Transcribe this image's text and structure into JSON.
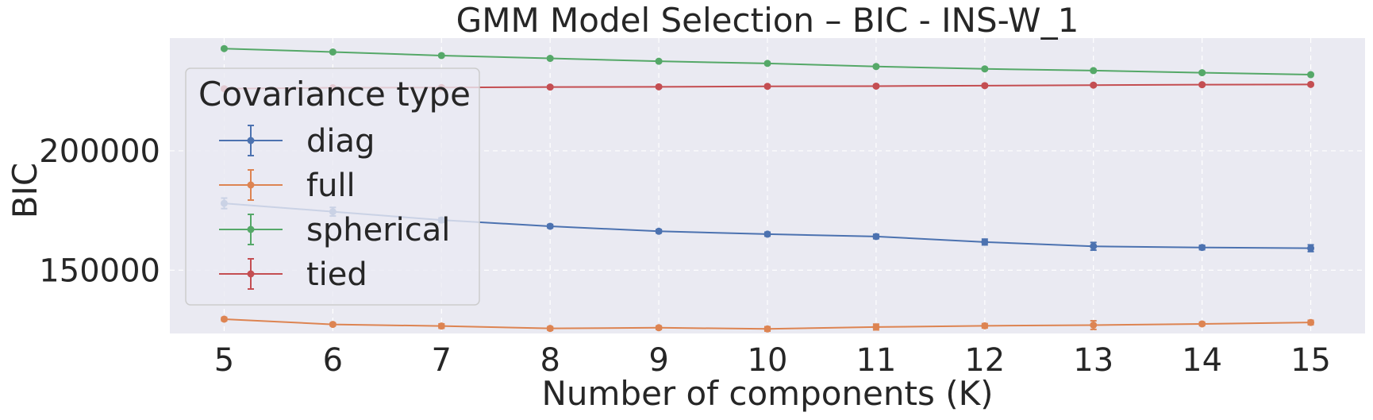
{
  "chart_data": {
    "type": "line",
    "title": "GMM Model Selection – BIC - INS-W_1",
    "xlabel": "Number of components (K)",
    "ylabel": "BIC",
    "x": [
      5,
      6,
      7,
      8,
      9,
      10,
      11,
      12,
      13,
      14,
      15
    ],
    "xlim": [
      4.5,
      15.5
    ],
    "ylim": [
      123500,
      247200
    ],
    "yticks": [
      150000,
      200000
    ],
    "ytick_labels": [
      "150000",
      "200000"
    ],
    "grid": true,
    "legend": {
      "title": "Covariance type",
      "placement": "upper-left"
    },
    "series": [
      {
        "name": "diag",
        "color": "#4c72b0",
        "values": [
          178000,
          174500,
          171000,
          168400,
          166300,
          165100,
          164100,
          161800,
          160000,
          159500,
          159200
        ],
        "errors": [
          2200,
          1800,
          900,
          700,
          700,
          800,
          900,
          1200,
          1600,
          900,
          1400
        ]
      },
      {
        "name": "full",
        "color": "#dd8452",
        "values": [
          129500,
          127300,
          126600,
          125600,
          125900,
          125400,
          126200,
          126700,
          127000,
          127500,
          128100
        ],
        "errors": [
          700,
          600,
          900,
          700,
          700,
          900,
          1200,
          900,
          1800,
          700,
          900
        ]
      },
      {
        "name": "spherical",
        "color": "#55a868",
        "values": [
          242800,
          241400,
          239900,
          238700,
          237500,
          236600,
          235300,
          234300,
          233600,
          232700,
          231900
        ],
        "errors": [
          500,
          500,
          500,
          500,
          500,
          500,
          500,
          500,
          500,
          500,
          500
        ]
      },
      {
        "name": "tied",
        "color": "#c44e52",
        "values": [
          226000,
          226400,
          226500,
          226700,
          226800,
          227000,
          227100,
          227300,
          227500,
          227700,
          227800
        ],
        "errors": [
          500,
          500,
          500,
          500,
          500,
          500,
          500,
          500,
          500,
          500,
          500
        ]
      }
    ]
  }
}
